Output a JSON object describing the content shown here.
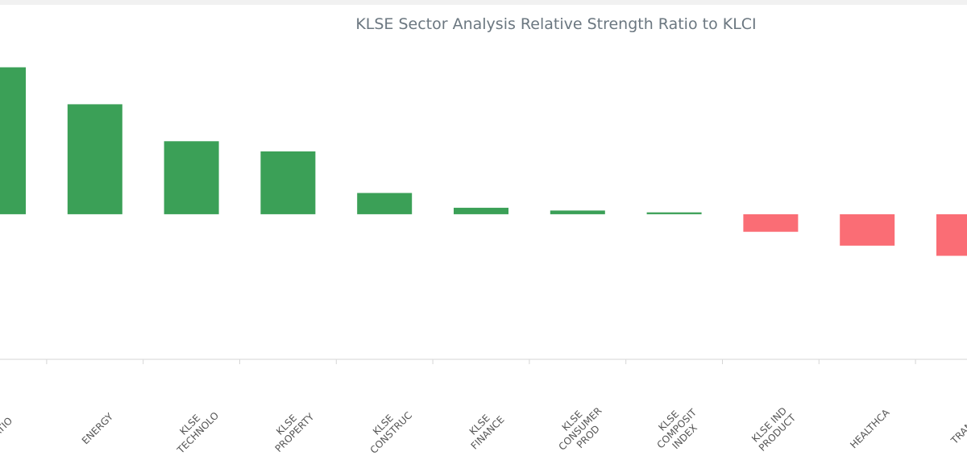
{
  "chart_data": {
    "type": "bar",
    "title": "KLSE Sector Analysis Relative Strength Ratio to KLCI",
    "xlabel": "",
    "ylabel": "",
    "categories": [
      "PLANTATIO",
      "ENERGY",
      "KLSE TECHNOLO",
      "KLSE PROPERTY",
      "KLSE CONSTRUC",
      "KLSE FINANCE",
      "KLSE CONSUMER PROD",
      "KLSE COMPOSIT INDEX",
      "KLSE IND PRODUCT",
      "HEALTHCA",
      "TRANSP"
    ],
    "tick_lines": [
      [
        "TATIO"
      ],
      [
        "ENERGY"
      ],
      [
        "KLSE",
        "TECHNOLO"
      ],
      [
        "KLSE",
        "PROPERTY"
      ],
      [
        "KLSE",
        "CONSTRUC"
      ],
      [
        "KLSE",
        "FINANCE"
      ],
      [
        "KLSE",
        "CONSUMER",
        "PROD"
      ],
      [
        "KLSE",
        "COMPOSIT",
        "INDEX"
      ],
      [
        "KLSE IND",
        "PRODUCT"
      ],
      [
        "HEALTHCA"
      ],
      [
        "TRANSP"
      ]
    ],
    "values": [
      159,
      119,
      79,
      68,
      23,
      7,
      4,
      2,
      -19,
      -34,
      -45
    ],
    "ylim": [
      -157,
      183
    ],
    "colors": {
      "positive": "#3ba057",
      "negative": "#fa6d75",
      "axis": "#d6d6d6"
    },
    "grid": false,
    "legend": "none"
  }
}
